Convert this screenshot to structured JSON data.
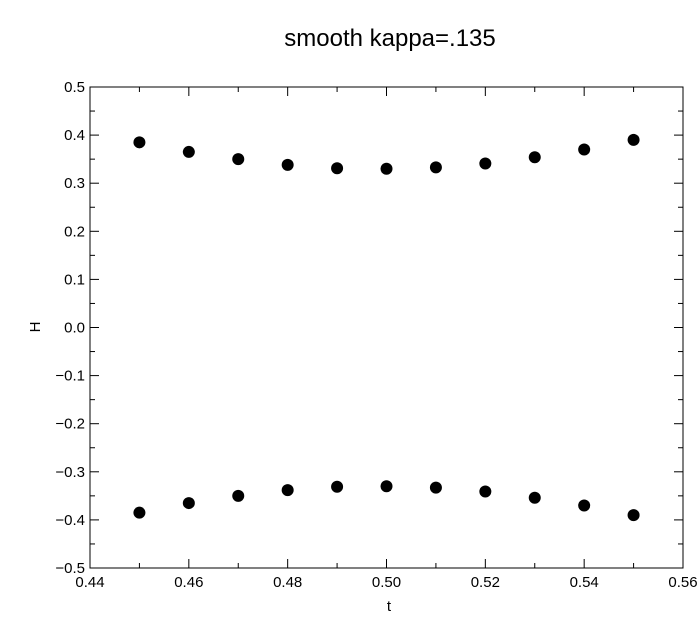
{
  "chart_data": {
    "type": "scatter",
    "title": "smooth kappa=.135",
    "xlabel": "t",
    "ylabel": "H",
    "xlim": [
      0.44,
      0.56
    ],
    "ylim": [
      -0.5,
      0.5
    ],
    "x_ticks": [
      "0.44",
      "0.46",
      "0.48",
      "0.50",
      "0.52",
      "0.54",
      "0.56"
    ],
    "x_tick_values": [
      0.44,
      0.46,
      0.48,
      0.5,
      0.52,
      0.54,
      0.56
    ],
    "y_ticks": [
      "0.5",
      "0.4",
      "0.3",
      "0.2",
      "0.1",
      "0.0",
      "−0.1",
      "−0.2",
      "−0.3",
      "−0.4",
      "−0.5"
    ],
    "y_tick_values": [
      0.5,
      0.4,
      0.3,
      0.2,
      0.1,
      0.0,
      -0.1,
      -0.2,
      -0.3,
      -0.4,
      -0.5
    ],
    "grid": false,
    "marker_color": "#000000",
    "series": [
      {
        "x": [
          0.45,
          0.46,
          0.47,
          0.48,
          0.49,
          0.5,
          0.51,
          0.52,
          0.53,
          0.54,
          0.55
        ],
        "y": [
          0.385,
          0.365,
          0.35,
          0.338,
          0.331,
          0.33,
          0.333,
          0.341,
          0.354,
          0.37,
          0.39
        ]
      },
      {
        "x": [
          0.45,
          0.46,
          0.47,
          0.48,
          0.49,
          0.5,
          0.51,
          0.52,
          0.53,
          0.54,
          0.55
        ],
        "y": [
          -0.385,
          -0.365,
          -0.35,
          -0.338,
          -0.331,
          -0.33,
          -0.333,
          -0.341,
          -0.354,
          -0.37,
          -0.39
        ]
      }
    ]
  }
}
